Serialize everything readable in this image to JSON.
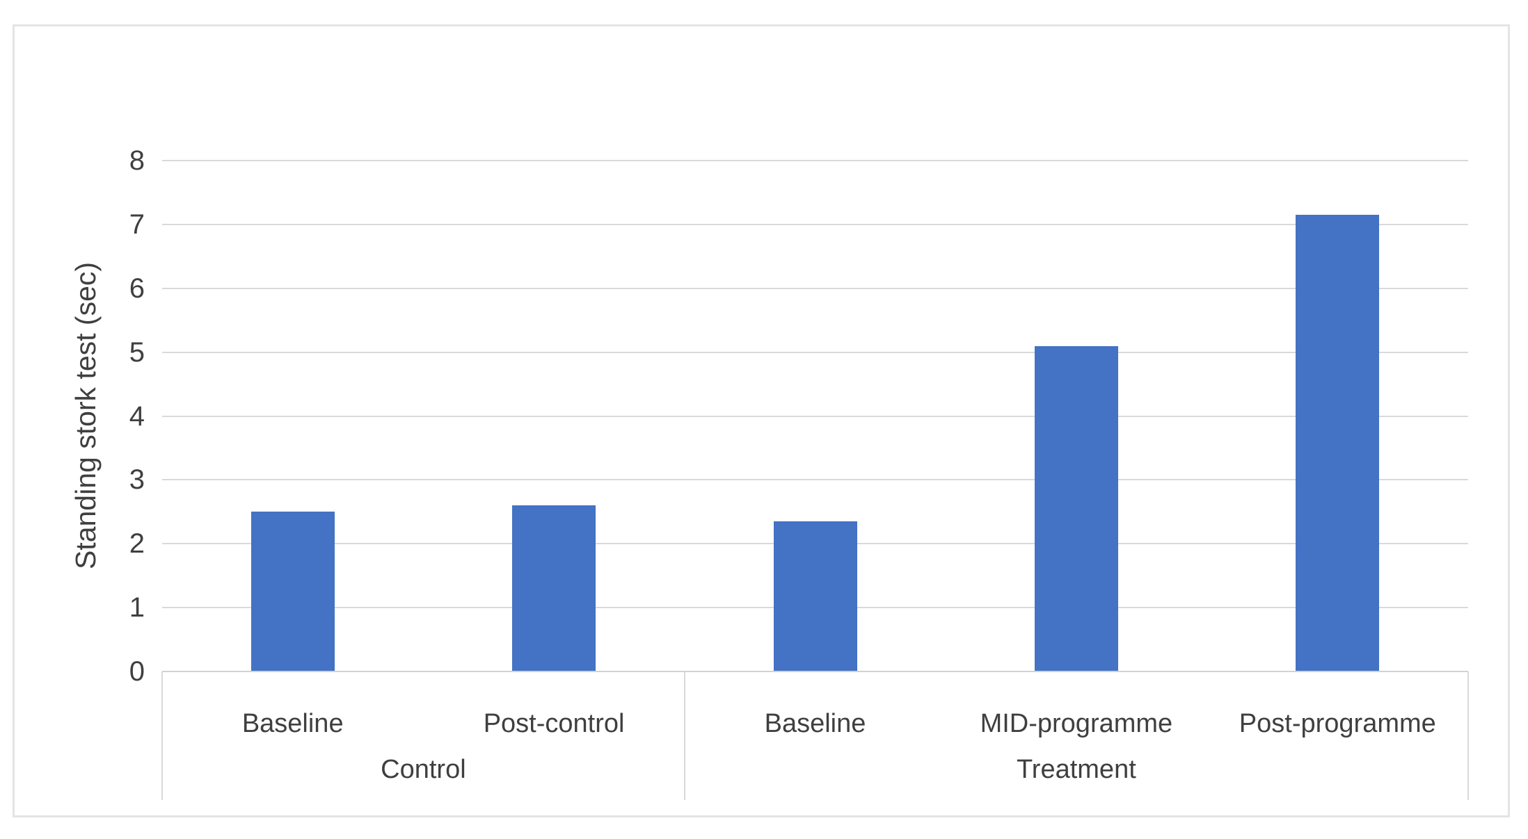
{
  "chart_data": {
    "type": "bar",
    "title": "",
    "xlabel": "",
    "ylabel": "Standing stork test (sec)",
    "ylim": [
      0,
      8
    ],
    "yticks": [
      0,
      1,
      2,
      3,
      4,
      5,
      6,
      7,
      8
    ],
    "grid": "horizontal",
    "legend_position": "none",
    "bar_color": "#4472C4",
    "categories": [
      "Baseline",
      "Post-control",
      "Baseline",
      "MID-programme",
      "Post-programme"
    ],
    "values": [
      2.5,
      2.6,
      2.35,
      5.1,
      7.15
    ],
    "groups": [
      {
        "label": "Control",
        "categories": [
          "Baseline",
          "Post-control"
        ],
        "values": [
          2.5,
          2.6
        ]
      },
      {
        "label": "Treatment",
        "categories": [
          "Baseline",
          "MID-programme",
          "Post-programme"
        ],
        "values": [
          2.35,
          5.1,
          7.15
        ]
      }
    ]
  },
  "colors": {
    "bar": "#4472C4",
    "gridline": "#d9d9d9",
    "axis_line": "#d2d2d2",
    "text": "#3f3f3f",
    "canvas_border": "#e4e4e4",
    "background": "#ffffff"
  }
}
